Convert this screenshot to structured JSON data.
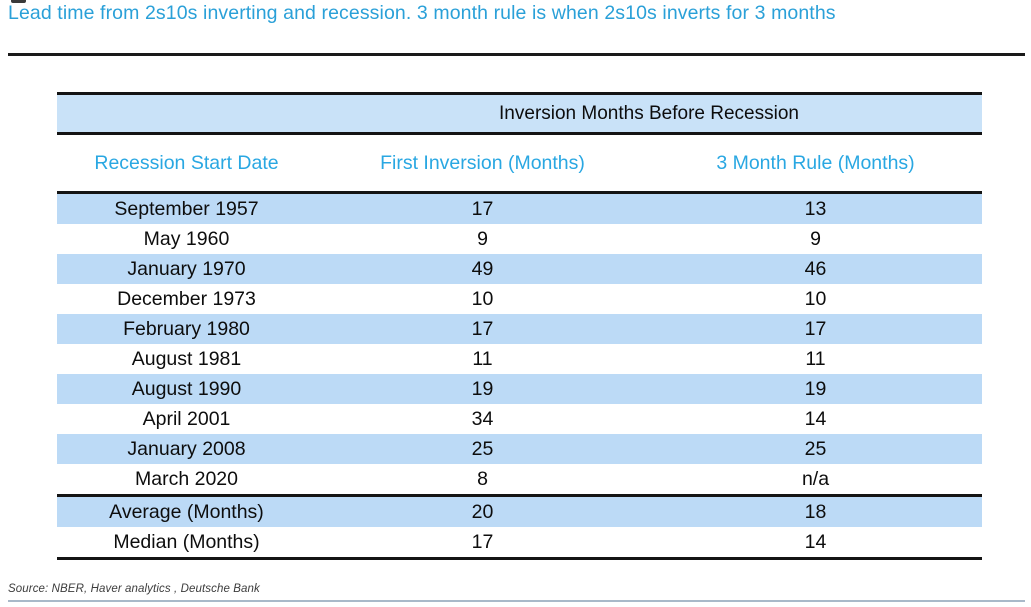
{
  "figure": {
    "title": "Lead time from 2s10s inverting and recession. 3 month rule is when 2s10s inverts for 3 months"
  },
  "table": {
    "band_header": "Inversion Months Before Recession",
    "columns": [
      "Recession Start Date",
      "First Inversion (Months)",
      "3 Month Rule (Months)"
    ],
    "rows": [
      {
        "date": "September 1957",
        "first_inversion": "17",
        "three_month_rule": "13"
      },
      {
        "date": "May 1960",
        "first_inversion": "9",
        "three_month_rule": "9"
      },
      {
        "date": "January 1970",
        "first_inversion": "49",
        "three_month_rule": "46"
      },
      {
        "date": "December 1973",
        "first_inversion": "10",
        "three_month_rule": "10"
      },
      {
        "date": "February 1980",
        "first_inversion": "17",
        "three_month_rule": "17"
      },
      {
        "date": "August 1981",
        "first_inversion": "11",
        "three_month_rule": "11"
      },
      {
        "date": "August 1990",
        "first_inversion": "19",
        "three_month_rule": "19"
      },
      {
        "date": "April 2001",
        "first_inversion": "34",
        "three_month_rule": "14"
      },
      {
        "date": "January 2008",
        "first_inversion": "25",
        "three_month_rule": "25"
      },
      {
        "date": "March 2020",
        "first_inversion": "8",
        "three_month_rule": "n/a"
      }
    ],
    "summary_rows": [
      {
        "date": "Average (Months)",
        "first_inversion": "20",
        "three_month_rule": "18"
      },
      {
        "date": "Median (Months)",
        "first_inversion": "17",
        "three_month_rule": "14"
      }
    ]
  },
  "footer": {
    "source": "Source: NBER, Haver analytics , Deutsche Bank"
  },
  "colors": {
    "title_cyan": "#2aa0d8",
    "column_header_cyan": "#29a7e2",
    "band_blue": "#c9e2f8",
    "row_blue": "#bcdaf6",
    "rule_black": "#141414",
    "source_gray": "#3c3c3c",
    "bottom_rule_blue_gray": "#a9b9c9"
  }
}
